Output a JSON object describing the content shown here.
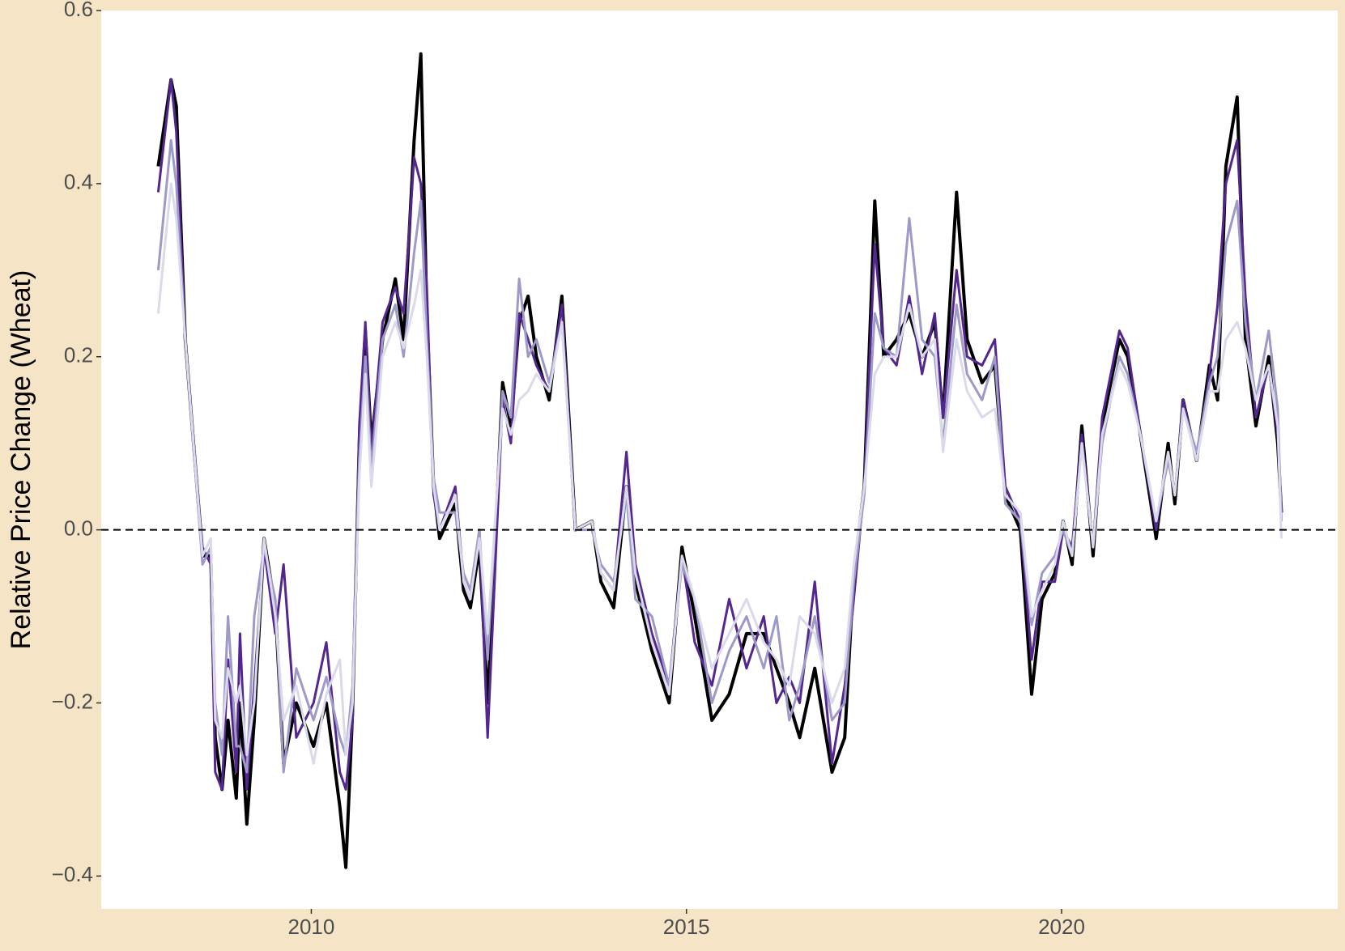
{
  "chart_data": {
    "type": "line",
    "y_label": "Relative Price Change (Wheat)",
    "xlim": [
      2007.2,
      2023.68
    ],
    "ylim": [
      -0.438,
      0.6
    ],
    "xticks": [
      2010,
      2015,
      2020
    ],
    "yticks": [
      {
        "value": -0.4,
        "label": "−0.4"
      },
      {
        "value": -0.2,
        "label": "−0.2"
      },
      {
        "value": 0,
        "label": "0.0"
      },
      {
        "value": 0.2,
        "label": "0.2"
      },
      {
        "value": 0.4,
        "label": "0.4"
      },
      {
        "value": 0.6,
        "label": "0.6"
      }
    ],
    "reference_line": 0,
    "x": [
      2007.96,
      2008.13,
      2008.2,
      2008.32,
      2008.55,
      2008.66,
      2008.72,
      2008.81,
      2008.89,
      2009.0,
      2009.05,
      2009.14,
      2009.24,
      2009.37,
      2009.52,
      2009.63,
      2009.8,
      2010.03,
      2010.2,
      2010.38,
      2010.46,
      2010.55,
      2010.64,
      2010.72,
      2010.8,
      2010.95,
      2011.12,
      2011.23,
      2011.37,
      2011.46,
      2011.54,
      2011.63,
      2011.71,
      2011.92,
      2012.03,
      2012.12,
      2012.24,
      2012.35,
      2012.55,
      2012.66,
      2012.77,
      2012.89,
      2013.0,
      2013.17,
      2013.34,
      2013.52,
      2013.74,
      2013.86,
      2014.03,
      2014.2,
      2014.32,
      2014.54,
      2014.77,
      2014.94,
      2015.11,
      2015.34,
      2015.57,
      2015.8,
      2016.03,
      2016.2,
      2016.37,
      2016.51,
      2016.71,
      2016.94,
      2017.11,
      2017.23,
      2017.37,
      2017.51,
      2017.63,
      2017.8,
      2017.97,
      2018.14,
      2018.31,
      2018.42,
      2018.6,
      2018.74,
      2018.94,
      2019.11,
      2019.25,
      2019.45,
      2019.6,
      2019.74,
      2019.91,
      2020.02,
      2020.14,
      2020.27,
      2020.42,
      2020.54,
      2020.77,
      2020.88,
      2021.05,
      2021.26,
      2021.42,
      2021.51,
      2021.62,
      2021.8,
      2021.97,
      2022.08,
      2022.19,
      2022.34,
      2022.45,
      2022.59,
      2022.76,
      2022.88,
      2022.93
    ],
    "series": [
      {
        "color": "#000000",
        "width": 4,
        "values": [
          0.42,
          0.52,
          0.49,
          0.22,
          -0.03,
          -0.03,
          -0.24,
          -0.3,
          -0.22,
          -0.31,
          -0.2,
          -0.34,
          -0.22,
          -0.01,
          -0.09,
          -0.27,
          -0.2,
          -0.25,
          -0.2,
          -0.32,
          -0.39,
          -0.21,
          0.1,
          0.23,
          0.1,
          0.22,
          0.29,
          0.22,
          0.45,
          0.55,
          0.25,
          0.05,
          -0.01,
          0.03,
          -0.07,
          -0.09,
          -0.02,
          -0.2,
          0.17,
          0.12,
          0.24,
          0.27,
          0.2,
          0.15,
          0.27,
          0.0,
          0.01,
          -0.06,
          -0.09,
          0.05,
          -0.06,
          -0.14,
          -0.2,
          -0.02,
          -0.1,
          -0.22,
          -0.19,
          -0.12,
          -0.12,
          -0.16,
          -0.2,
          -0.24,
          -0.16,
          -0.28,
          -0.24,
          -0.05,
          0.05,
          0.38,
          0.2,
          0.22,
          0.25,
          0.2,
          0.24,
          0.13,
          0.39,
          0.22,
          0.17,
          0.19,
          0.04,
          0.0,
          -0.19,
          -0.08,
          -0.05,
          0.01,
          -0.04,
          0.12,
          -0.03,
          0.12,
          0.22,
          0.2,
          0.11,
          -0.01,
          0.1,
          0.03,
          0.15,
          0.08,
          0.19,
          0.15,
          0.42,
          0.5,
          0.22,
          0.12,
          0.2,
          0.1,
          0.02
        ]
      },
      {
        "color": "#54278f",
        "width": 3,
        "values": [
          0.39,
          0.52,
          0.46,
          0.22,
          -0.02,
          -0.04,
          -0.28,
          -0.3,
          -0.15,
          -0.28,
          -0.12,
          -0.3,
          -0.18,
          -0.02,
          -0.12,
          -0.04,
          -0.24,
          -0.2,
          -0.13,
          -0.28,
          -0.3,
          -0.22,
          0.12,
          0.24,
          0.09,
          0.24,
          0.28,
          0.25,
          0.43,
          0.4,
          0.28,
          0.04,
          0.0,
          0.05,
          -0.06,
          -0.08,
          0.0,
          -0.24,
          0.15,
          0.1,
          0.25,
          0.22,
          0.19,
          0.16,
          0.26,
          0.0,
          0.01,
          -0.05,
          -0.07,
          0.09,
          -0.04,
          -0.12,
          -0.18,
          -0.03,
          -0.13,
          -0.18,
          -0.08,
          -0.16,
          -0.1,
          -0.2,
          -0.17,
          -0.2,
          -0.06,
          -0.27,
          -0.18,
          -0.08,
          0.05,
          0.33,
          0.21,
          0.19,
          0.27,
          0.18,
          0.25,
          0.13,
          0.3,
          0.2,
          0.19,
          0.22,
          0.05,
          0.01,
          -0.15,
          -0.06,
          -0.06,
          0.0,
          -0.02,
          0.11,
          -0.02,
          0.13,
          0.23,
          0.21,
          0.11,
          0.0,
          0.09,
          0.04,
          0.15,
          0.08,
          0.18,
          0.26,
          0.4,
          0.45,
          0.27,
          0.13,
          0.19,
          0.11,
          0.02
        ]
      },
      {
        "color": "#9e9ac8",
        "width": 3,
        "values": [
          0.3,
          0.45,
          0.4,
          0.22,
          -0.04,
          -0.02,
          -0.2,
          -0.26,
          -0.1,
          -0.25,
          -0.25,
          -0.28,
          -0.1,
          -0.02,
          -0.08,
          -0.28,
          -0.16,
          -0.22,
          -0.17,
          -0.24,
          -0.26,
          -0.18,
          0.08,
          0.2,
          0.07,
          0.22,
          0.26,
          0.2,
          0.32,
          0.38,
          0.22,
          0.06,
          0.02,
          0.02,
          -0.05,
          -0.07,
          0.0,
          -0.15,
          0.16,
          0.13,
          0.29,
          0.2,
          0.22,
          0.17,
          0.24,
          0.0,
          0.0,
          -0.04,
          -0.06,
          0.04,
          -0.08,
          -0.1,
          -0.18,
          -0.04,
          -0.08,
          -0.2,
          -0.14,
          -0.1,
          -0.16,
          -0.1,
          -0.22,
          -0.18,
          -0.1,
          -0.22,
          -0.2,
          -0.06,
          0.04,
          0.25,
          0.21,
          0.2,
          0.36,
          0.22,
          0.2,
          0.1,
          0.26,
          0.18,
          0.15,
          0.2,
          0.03,
          0.01,
          -0.11,
          -0.05,
          -0.03,
          0.0,
          -0.03,
          0.1,
          -0.02,
          0.1,
          0.2,
          0.18,
          0.11,
          0.01,
          0.08,
          0.04,
          0.14,
          0.09,
          0.17,
          0.2,
          0.33,
          0.38,
          0.24,
          0.15,
          0.23,
          0.14,
          0.01
        ]
      },
      {
        "color": "#dadaeb",
        "width": 3,
        "values": [
          0.25,
          0.4,
          0.36,
          0.22,
          -0.03,
          -0.01,
          -0.22,
          -0.24,
          -0.16,
          -0.2,
          -0.18,
          -0.26,
          -0.2,
          -0.01,
          -0.1,
          -0.22,
          -0.18,
          -0.27,
          -0.19,
          -0.15,
          -0.26,
          -0.2,
          0.06,
          0.18,
          0.05,
          0.2,
          0.24,
          0.21,
          0.26,
          0.3,
          0.2,
          0.05,
          0.0,
          0.04,
          -0.06,
          -0.08,
          -0.01,
          -0.12,
          0.14,
          0.11,
          0.15,
          0.16,
          0.18,
          0.16,
          0.24,
          0.0,
          0.01,
          -0.05,
          -0.07,
          0.05,
          -0.05,
          -0.13,
          -0.19,
          -0.03,
          -0.08,
          -0.16,
          -0.12,
          -0.08,
          -0.13,
          -0.15,
          -0.18,
          -0.1,
          -0.12,
          -0.2,
          -0.16,
          -0.04,
          0.05,
          0.18,
          0.2,
          0.2,
          0.26,
          0.2,
          0.22,
          0.09,
          0.22,
          0.16,
          0.13,
          0.14,
          0.04,
          0.02,
          -0.1,
          -0.07,
          -0.04,
          0.01,
          -0.03,
          0.1,
          -0.02,
          0.11,
          0.19,
          0.17,
          0.11,
          0.01,
          0.09,
          0.04,
          0.14,
          0.08,
          0.16,
          0.16,
          0.22,
          0.24,
          0.21,
          0.15,
          0.19,
          0.12,
          -0.01
        ]
      }
    ]
  }
}
